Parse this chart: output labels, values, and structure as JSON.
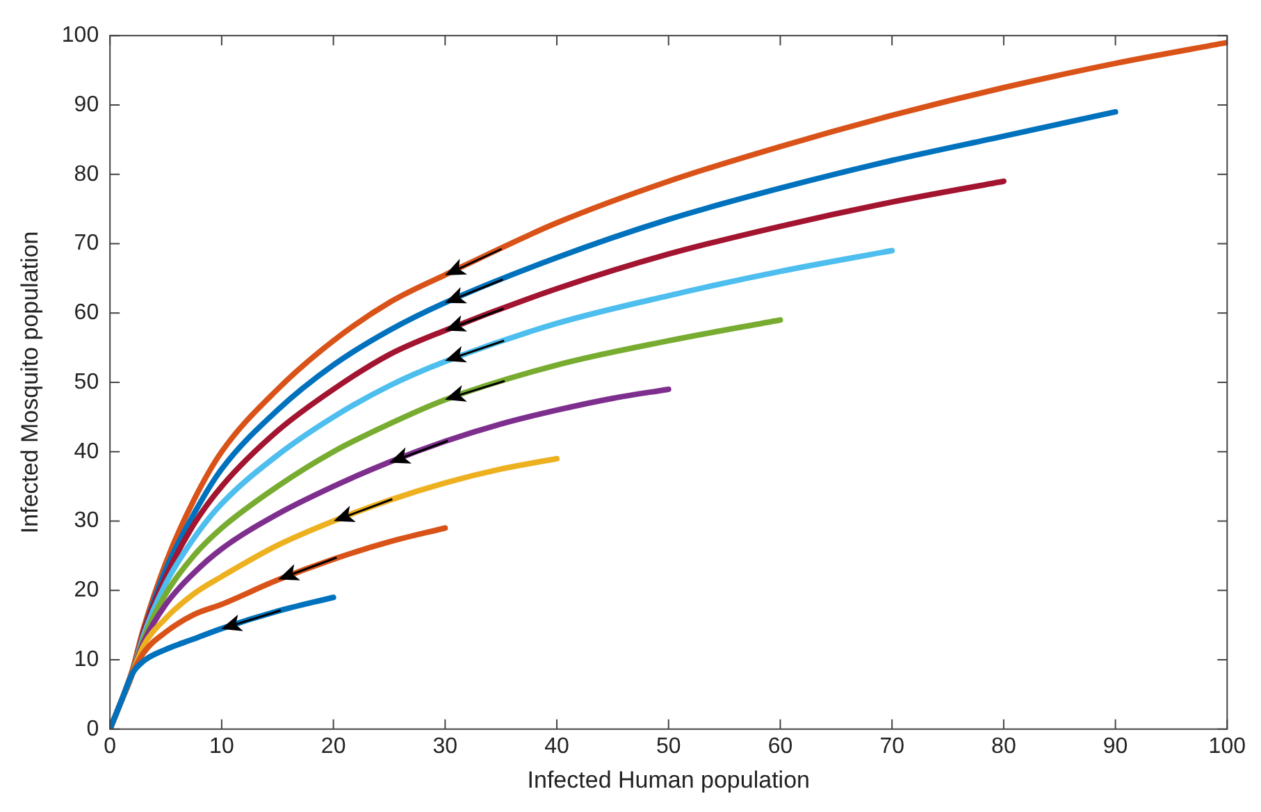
{
  "chart_data": {
    "type": "line",
    "xlabel": "Infected Human population",
    "ylabel": "Infected Mosquito population",
    "xlim": [
      0,
      100
    ],
    "ylim": [
      0,
      100
    ],
    "xticks": [
      0,
      10,
      20,
      30,
      40,
      50,
      60,
      70,
      80,
      90,
      100
    ],
    "yticks": [
      0,
      10,
      20,
      30,
      40,
      50,
      60,
      70,
      80,
      90,
      100
    ],
    "grid": false,
    "legend": false,
    "marker": "none",
    "line_style": "solid",
    "series": [
      {
        "color": "#0072bd",
        "x": [
          0,
          1,
          2,
          3,
          5,
          7.5,
          10,
          15,
          20
        ],
        "values": [
          0,
          4,
          8,
          9.8,
          11.5,
          13,
          14.5,
          17,
          19
        ]
      },
      {
        "color": "#d95319",
        "x": [
          0,
          1,
          2,
          3,
          5,
          7.5,
          10,
          15,
          20,
          25,
          30
        ],
        "values": [
          0,
          4,
          8,
          11,
          14,
          16.5,
          18,
          21.5,
          24.5,
          27,
          29
        ]
      },
      {
        "color": "#edb120",
        "x": [
          0,
          1,
          2,
          3,
          5,
          7.5,
          10,
          15,
          20,
          25,
          30,
          35,
          40
        ],
        "values": [
          0,
          4,
          8,
          12,
          16,
          19.5,
          22,
          26.5,
          30,
          33,
          35.5,
          37.5,
          39
        ]
      },
      {
        "color": "#7e2f8e",
        "x": [
          0,
          1,
          2,
          3,
          5,
          7.5,
          10,
          15,
          20,
          25,
          30,
          35,
          40,
          45,
          50
        ],
        "values": [
          0,
          4,
          8,
          12.5,
          18,
          22.5,
          26,
          31,
          35,
          38.5,
          41.5,
          44,
          46,
          47.7,
          49
        ]
      },
      {
        "color": "#77ac30",
        "x": [
          0,
          1,
          2,
          3,
          5,
          7.5,
          10,
          15,
          20,
          25,
          30,
          40,
          50,
          60
        ],
        "values": [
          0,
          4,
          8,
          13,
          19.5,
          25,
          29,
          35,
          40,
          44,
          47.5,
          52.5,
          56,
          59
        ]
      },
      {
        "color": "#4dbeee",
        "x": [
          0,
          1,
          2,
          3,
          5,
          7.5,
          10,
          15,
          20,
          25,
          30,
          40,
          50,
          60,
          70
        ],
        "values": [
          0,
          4,
          8,
          13.5,
          21,
          27.5,
          32.5,
          39.5,
          45,
          49.5,
          53,
          58.5,
          62.5,
          66,
          69
        ]
      },
      {
        "color": "#a2142f",
        "x": [
          0,
          1,
          2,
          3,
          5,
          7.5,
          10,
          15,
          20,
          25,
          30,
          40,
          50,
          60,
          70,
          80
        ],
        "values": [
          0,
          4,
          8,
          14,
          22,
          29.5,
          35,
          43,
          49,
          54,
          57.5,
          63.5,
          68.5,
          72.5,
          76,
          79
        ]
      },
      {
        "color": "#0072bd",
        "x": [
          0,
          1,
          2,
          3,
          5,
          7.5,
          10,
          15,
          20,
          25,
          30,
          40,
          50,
          60,
          70,
          80,
          90
        ],
        "values": [
          0,
          4,
          8,
          14,
          23,
          31,
          37.5,
          46,
          52.5,
          57.5,
          61.5,
          68,
          73.5,
          78,
          82,
          85.5,
          89
        ]
      },
      {
        "color": "#d95319",
        "x": [
          0,
          1,
          2,
          3,
          5,
          7.5,
          10,
          15,
          20,
          25,
          30,
          40,
          50,
          60,
          70,
          80,
          90,
          100
        ],
        "values": [
          0,
          4,
          8.5,
          14.5,
          24,
          33,
          40,
          49,
          56,
          61.5,
          65.5,
          73,
          79,
          84,
          88.5,
          92.5,
          96,
          99
        ]
      }
    ]
  }
}
